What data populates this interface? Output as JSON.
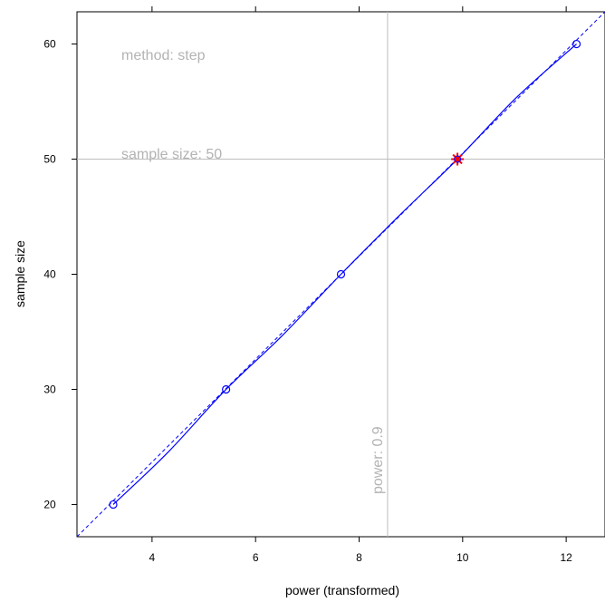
{
  "chart_data": {
    "type": "line",
    "xlabel": "power (transformed)",
    "ylabel": "sample size",
    "xlim": [
      2.55,
      12.75
    ],
    "ylim": [
      17.2,
      62.8
    ],
    "x_ticks": [
      4,
      6,
      8,
      10,
      12
    ],
    "y_ticks": [
      20,
      30,
      40,
      50,
      60
    ],
    "series": [
      {
        "type": "scatter",
        "marker": "circle",
        "color": "#0000ff",
        "points": [
          [
            3.25,
            20
          ],
          [
            5.43,
            30
          ],
          [
            7.65,
            40
          ],
          [
            12.2,
            60
          ]
        ]
      },
      {
        "type": "smooth-line",
        "color": "#0000ff",
        "points": [
          [
            3.25,
            20
          ],
          [
            4.3,
            24.5
          ],
          [
            5.43,
            30
          ],
          [
            6.5,
            34.6
          ],
          [
            7.65,
            40
          ],
          [
            8.8,
            45.2
          ],
          [
            9.9,
            50
          ],
          [
            11.05,
            55.4
          ],
          [
            12.2,
            60
          ]
        ]
      },
      {
        "type": "dashed-line",
        "color": "#0000ff",
        "points": [
          [
            2.55,
            17.2
          ],
          [
            12.75,
            62.8
          ]
        ]
      }
    ],
    "reference_lines": {
      "color": "#bebebe",
      "vertical_x": 8.55,
      "horizontal_y": 50
    },
    "highlight_point": {
      "x": 9.9,
      "y": 50,
      "marker": "star",
      "color": "#ff0000"
    },
    "annotations": {
      "method": "method: step",
      "sample_size": "sample size: 50",
      "power": "power: 0.9"
    }
  }
}
